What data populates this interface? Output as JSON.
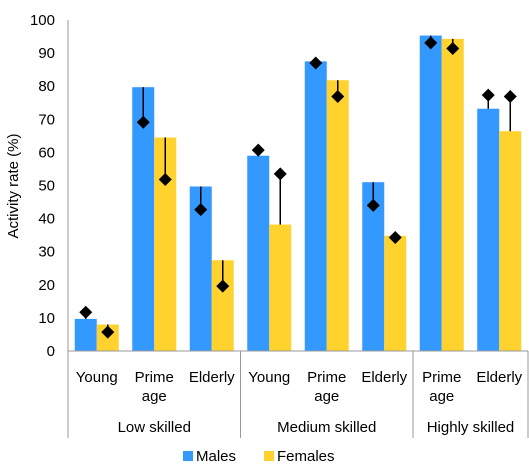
{
  "chart_data": {
    "type": "bar",
    "ylabel": "Activity rate (%)",
    "ylim": [
      0,
      100
    ],
    "yticks": [
      0,
      10,
      20,
      30,
      40,
      50,
      60,
      70,
      80,
      90,
      100
    ],
    "grid": false,
    "legend_position": "bottom",
    "categories": [
      {
        "label": [
          "Young"
        ],
        "group": 0
      },
      {
        "label": [
          "Prime",
          "age"
        ],
        "group": 0
      },
      {
        "label": [
          "Elderly"
        ],
        "group": 0
      },
      {
        "label": [
          "Young"
        ],
        "group": 1
      },
      {
        "label": [
          "Prime",
          "age"
        ],
        "group": 1
      },
      {
        "label": [
          "Elderly"
        ],
        "group": 1
      },
      {
        "label": [
          "Prime",
          "age"
        ],
        "group": 2
      },
      {
        "label": [
          "Elderly"
        ],
        "group": 2
      }
    ],
    "groups": [
      "Low skilled",
      "Medium skilled",
      "Highly skilled"
    ],
    "series": [
      {
        "name": "Males",
        "color": "#3399ff",
        "values": [
          9.7,
          79.7,
          49.7,
          59.0,
          87.5,
          51.0,
          95.3,
          73.2
        ],
        "markers": [
          11.7,
          69.1,
          42.7,
          60.7,
          87.0,
          44.0,
          93.1,
          77.3
        ]
      },
      {
        "name": "Females",
        "color": "#ffd22e",
        "values": [
          8.0,
          64.5,
          27.4,
          38.2,
          81.8,
          34.8,
          94.3,
          66.4
        ],
        "markers": [
          5.7,
          51.8,
          19.6,
          53.5,
          76.9,
          34.3,
          91.4,
          76.9
        ]
      }
    ],
    "marker_symbol": "diamond",
    "marker_color": "#000000"
  }
}
